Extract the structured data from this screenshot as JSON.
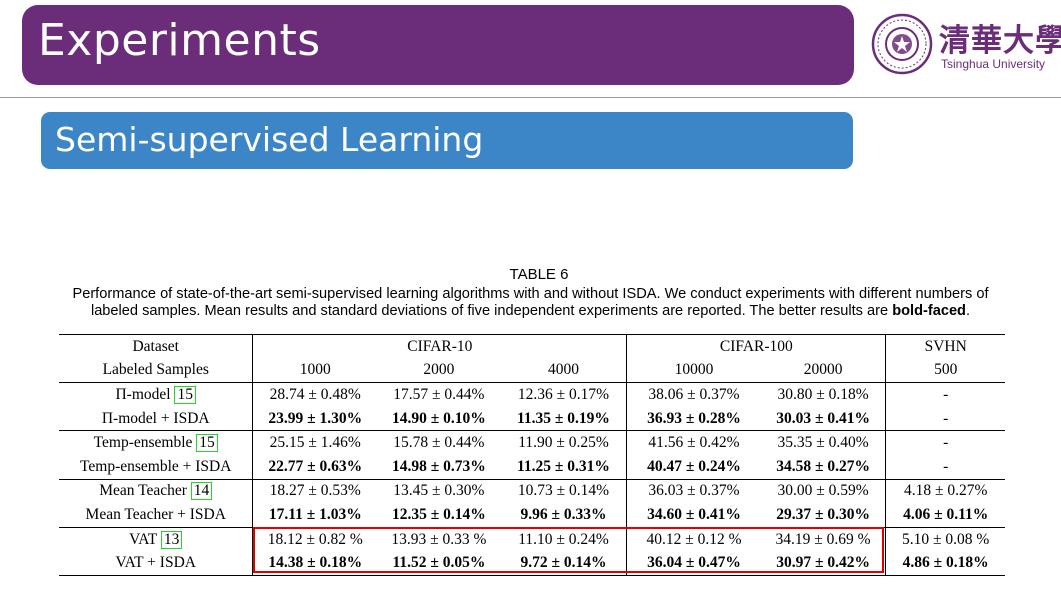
{
  "header": {
    "title": "Experiments",
    "logo_text_cn": "清華大學",
    "logo_text_en": "Tsinghua University"
  },
  "section": {
    "title": "Semi-supervised Learning"
  },
  "caption": {
    "label": "TABLE 6",
    "text_line1": "Performance of state-of-the-art semi-supervised learning algorithms with and without ISDA. We conduct experiments with different numbers of",
    "text_line2_pre": "labeled samples. Mean results and standard deviations of five independent experiments are reported. The better results are ",
    "text_bold": "bold-faced",
    "text_end": "."
  },
  "table": {
    "header": {
      "dataset_label": "Dataset",
      "datasets": [
        "CIFAR-10",
        "CIFAR-100",
        "SVHN"
      ],
      "labeled_label": "Labeled Samples",
      "samples": [
        "1000",
        "2000",
        "4000",
        "10000",
        "20000",
        "500"
      ]
    },
    "rows": [
      {
        "method": "Π-model",
        "ref": "15",
        "isda": false,
        "values": [
          "28.74 ± 0.48%",
          "17.57 ± 0.44%",
          "12.36 ± 0.17%",
          "38.06 ± 0.37%",
          "30.80 ± 0.18%",
          "-"
        ]
      },
      {
        "method": "Π-model + ISDA",
        "isda": true,
        "values": [
          "23.99 ± 1.30%",
          "14.90 ± 0.10%",
          "11.35 ± 0.19%",
          "36.93 ± 0.28%",
          "30.03 ± 0.41%",
          "-"
        ]
      },
      {
        "method": "Temp-ensemble",
        "ref": "15",
        "isda": false,
        "values": [
          "25.15 ± 1.46%",
          "15.78 ± 0.44%",
          "11.90 ± 0.25%",
          "41.56 ± 0.42%",
          "35.35 ± 0.40%",
          "-"
        ]
      },
      {
        "method": "Temp-ensemble + ISDA",
        "isda": true,
        "values": [
          "22.77 ± 0.63%",
          "14.98 ± 0.73%",
          "11.25 ± 0.31%",
          "40.47 ± 0.24%",
          "34.58 ± 0.27%",
          "-"
        ]
      },
      {
        "method": "Mean Teacher",
        "ref": "14",
        "isda": false,
        "values": [
          "18.27 ± 0.53%",
          "13.45 ± 0.30%",
          "10.73 ± 0.14%",
          "36.03 ± 0.37%",
          "30.00 ± 0.59%",
          "4.18 ± 0.27%"
        ]
      },
      {
        "method": "Mean Teacher + ISDA",
        "isda": true,
        "values": [
          "17.11 ± 1.03%",
          "12.35 ± 0.14%",
          "9.96 ± 0.33%",
          "34.60 ± 0.41%",
          "29.37 ± 0.30%",
          "4.06 ± 0.11%"
        ]
      },
      {
        "method": "VAT",
        "ref": "13",
        "isda": false,
        "values": [
          "18.12 ± 0.82 %",
          "13.93 ± 0.33 %",
          "11.10 ± 0.24%",
          "40.12 ± 0.12 %",
          "34.19 ± 0.69 %",
          "5.10 ± 0.08 %"
        ]
      },
      {
        "method": "VAT + ISDA",
        "isda": true,
        "values": [
          "14.38 ± 0.18%",
          "11.52 ± 0.05%",
          "9.72 ± 0.14%",
          "36.04 ± 0.47%",
          "30.97 ± 0.42%",
          "4.86 ± 0.18%"
        ]
      }
    ]
  },
  "colors": {
    "title_bar": "#6b2d7a",
    "section_bar": "#3c86c8",
    "ref_box": "#2ad12a",
    "highlight_box": "#e00000"
  }
}
